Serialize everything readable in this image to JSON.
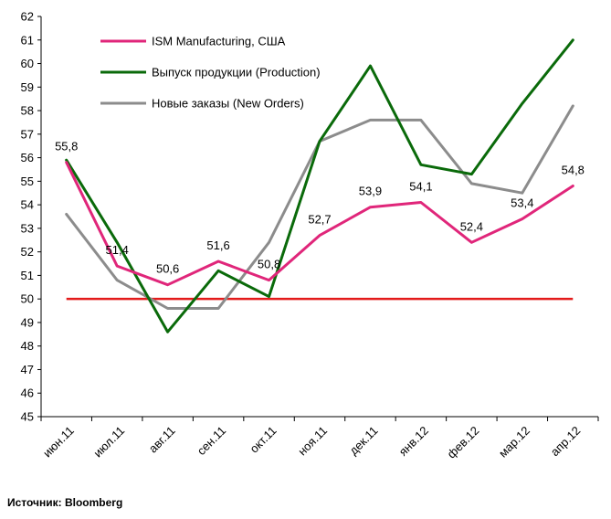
{
  "chart_data": {
    "type": "line",
    "categories": [
      "июн.11",
      "июл.11",
      "авг.11",
      "сен.11",
      "окт.11",
      "ноя.11",
      "дек.11",
      "янв.12",
      "фев.12",
      "мар.12",
      "апр.12"
    ],
    "ylim": [
      45,
      62
    ],
    "yticks": [
      45,
      46,
      47,
      48,
      49,
      50,
      51,
      52,
      53,
      54,
      55,
      56,
      57,
      58,
      59,
      60,
      61,
      62
    ],
    "grid": false,
    "legend": "top-left",
    "series": [
      {
        "name": "ISM Manufacturing, США",
        "color": "#e0267a",
        "values": [
          55.8,
          51.4,
          50.6,
          51.6,
          50.8,
          52.7,
          53.9,
          54.1,
          52.4,
          53.4,
          54.8
        ],
        "labels": [
          "55,8",
          "51,4",
          "50,6",
          "51,6",
          "50,8",
          "52,7",
          "53,9",
          "54,1",
          "52,4",
          "53,4",
          "54,8"
        ]
      },
      {
        "name": "Выпуск продукции (Production)",
        "color": "#0a6a0a",
        "values": [
          55.9,
          52.4,
          48.6,
          51.2,
          50.1,
          56.7,
          59.9,
          55.7,
          55.3,
          58.3,
          61.0
        ]
      },
      {
        "name": "Новые заказы  (New Orders)",
        "color": "#8c8c8c",
        "values": [
          53.6,
          50.8,
          49.6,
          49.6,
          52.4,
          56.7,
          57.6,
          57.6,
          54.9,
          54.5,
          58.2
        ]
      }
    ],
    "reference_line": {
      "value": 50,
      "color": "#e31b1b"
    }
  },
  "source": "Источник: Bloomberg"
}
